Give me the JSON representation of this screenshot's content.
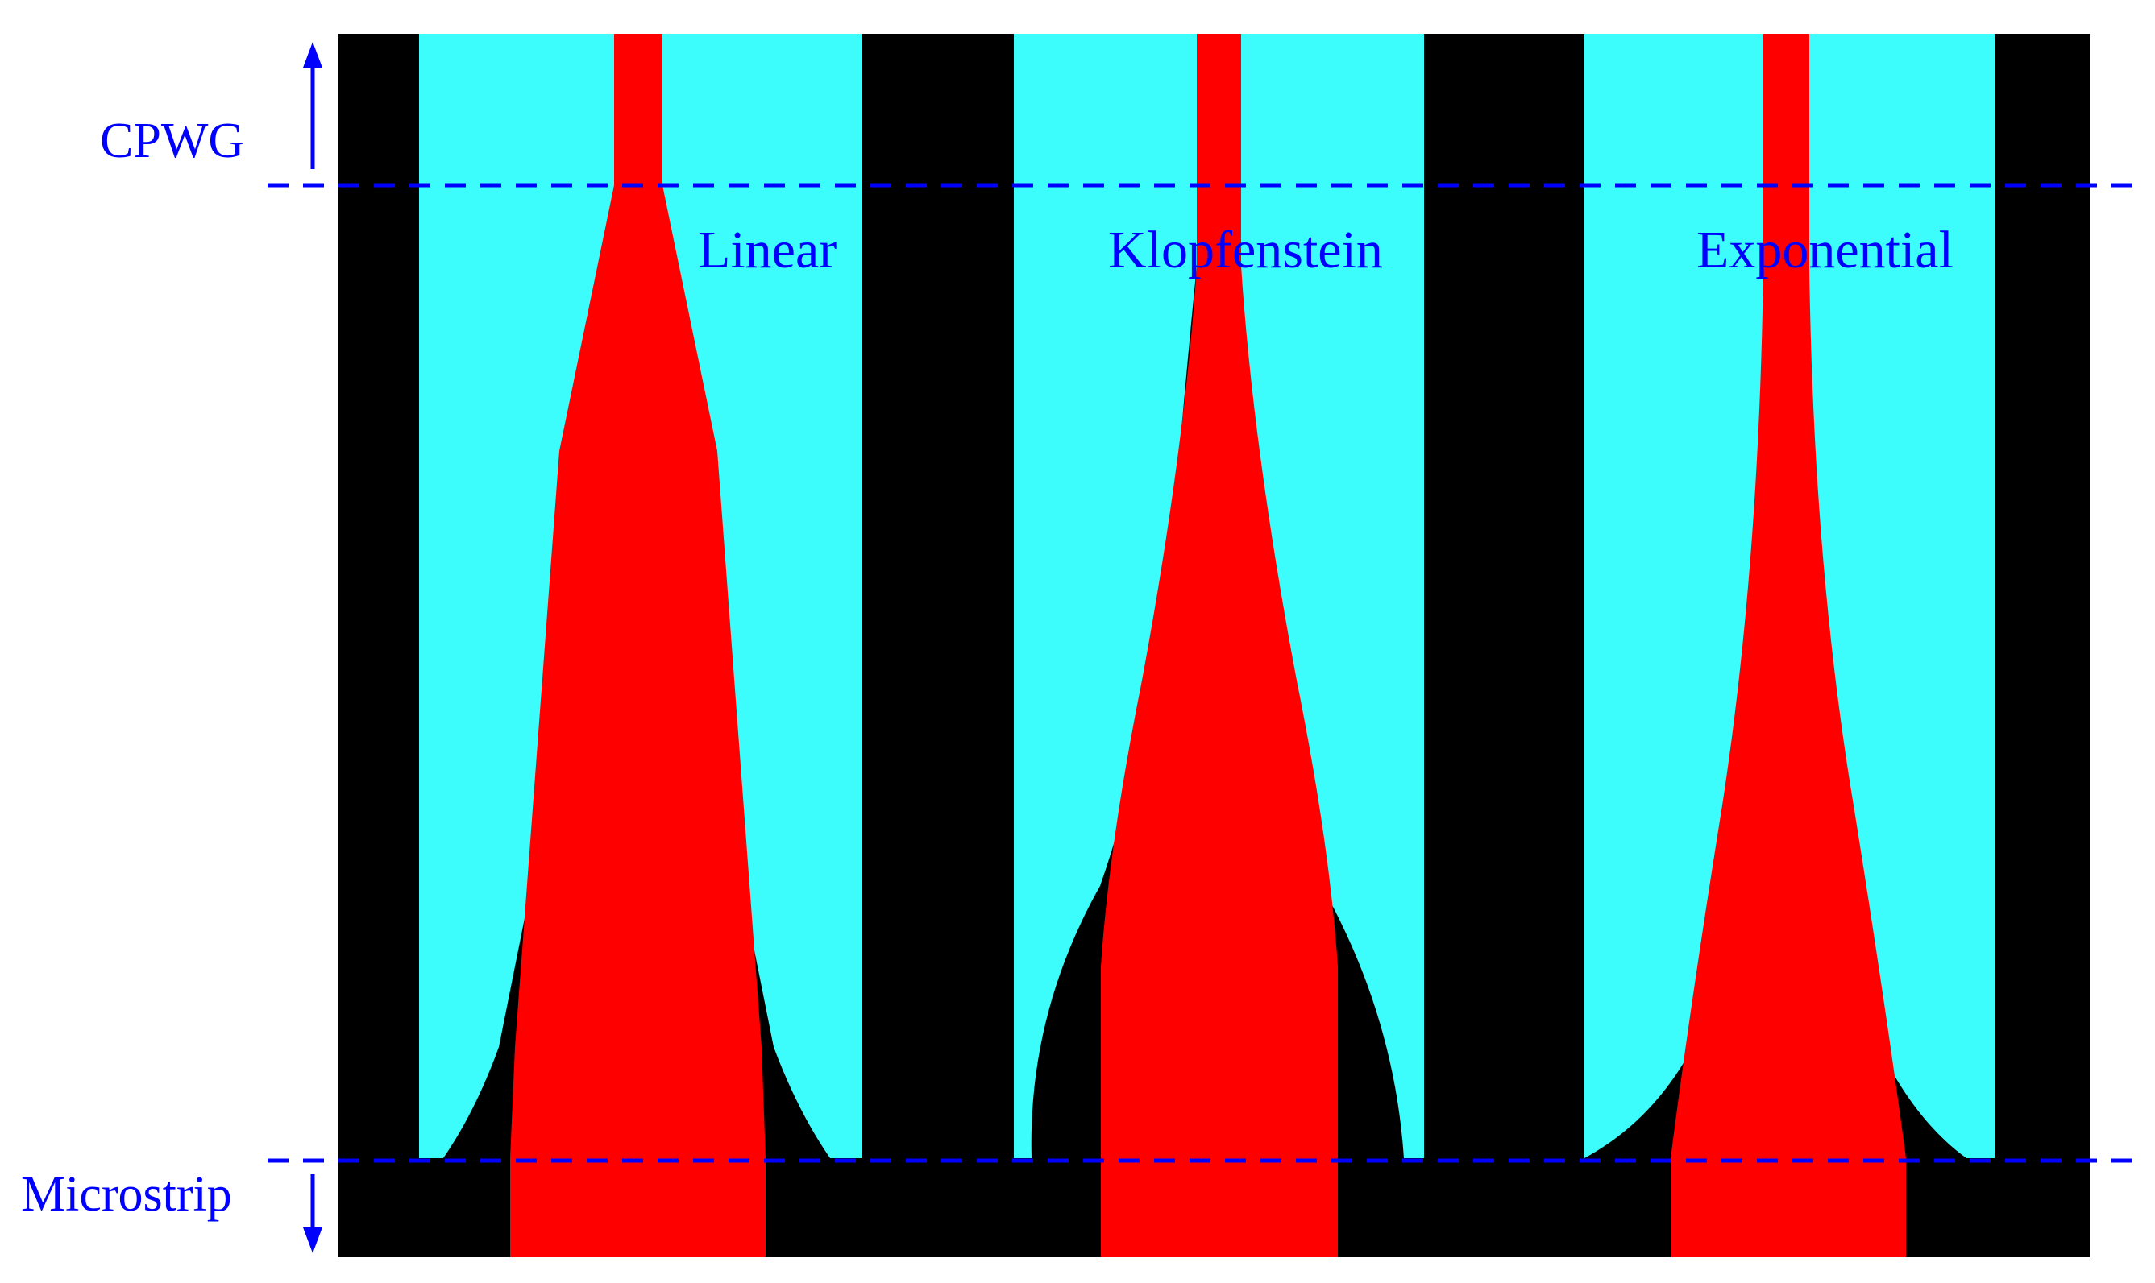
{
  "figure": {
    "description_labels": {
      "top_region": "CPWG",
      "bottom_region": "Microstrip"
    },
    "tapers": [
      {
        "id": "linear",
        "label": "Linear"
      },
      {
        "id": "klopfenstein",
        "label": "Klopfenstein"
      },
      {
        "id": "exponential",
        "label": "Exponential"
      }
    ],
    "colors": {
      "substrate": "#000000",
      "ground_plane": "#3dfcfc",
      "signal_trace": "#ff0000",
      "annotation": "#0000ff",
      "background": "#ffffff"
    }
  }
}
